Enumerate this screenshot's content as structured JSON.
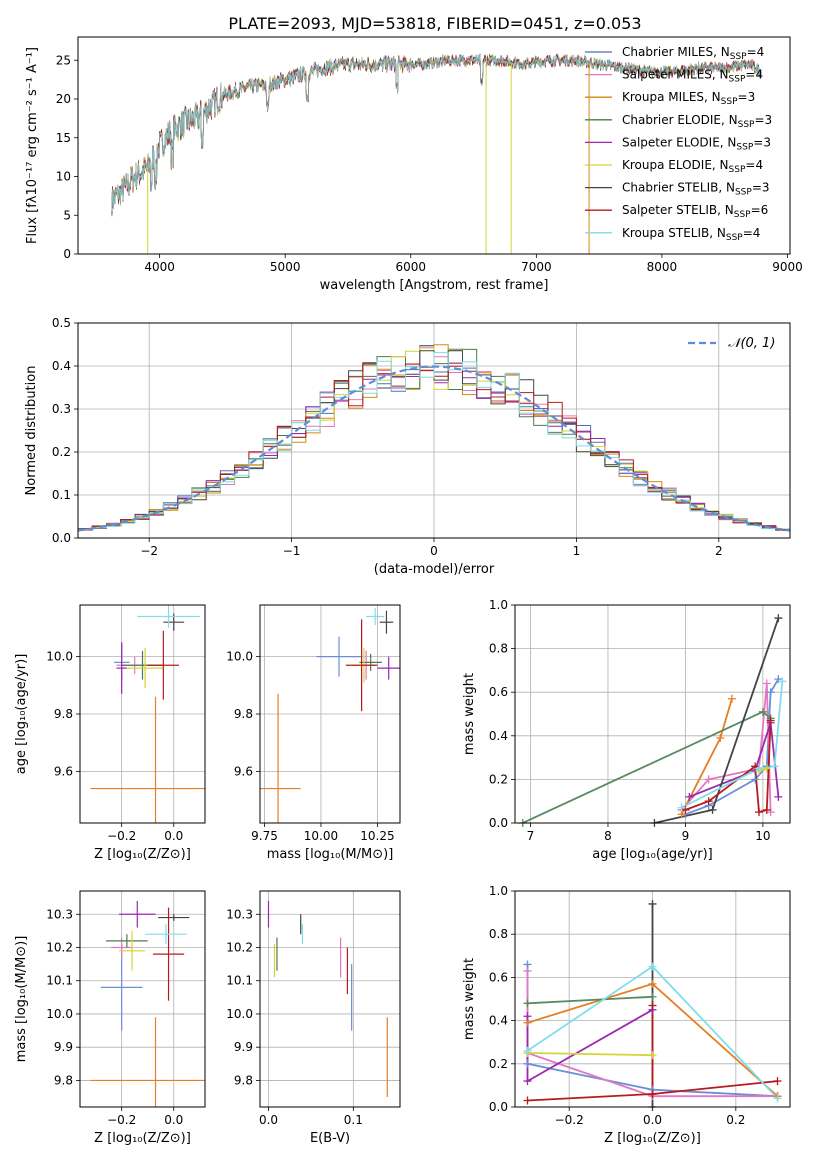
{
  "figure": {
    "title": "PLATE=2093, MJD=53818, FIBERID=0451, z=0.053"
  },
  "colors": {
    "chabrier_miles": "#4C72B0",
    "salpeter_miles": "#E377C2",
    "kroupa_miles": "#D62728",
    "chabrier_elodie": "#2E7D32",
    "salpeter_elodie": "#9C27B0",
    "kroupa_elodie": "#CDDC39",
    "chabrier_stelib": "#444444",
    "salpeter_stelib": "#B71C1C",
    "kroupa_stelib": "#80DEEA",
    "normal": "#5B8DD9",
    "orange": "#E67E22",
    "blue": "#6A8FD8"
  },
  "chart_data": [
    {
      "id": "spectrum",
      "type": "line",
      "xlabel": "wavelength [Angstrom, rest frame]",
      "ylabel": "Flux [fλ10⁻¹⁷ erg cm⁻² s⁻¹ A⁻¹]",
      "xlim": [
        3350,
        9020
      ],
      "ylim": [
        0,
        28
      ],
      "xticks": [
        4000,
        5000,
        6000,
        7000,
        8000,
        9000
      ],
      "yticks": [
        0,
        5,
        10,
        15,
        20,
        25
      ],
      "grid": false,
      "legend_position": "right",
      "continuum": {
        "x": [
          3620,
          3700,
          3800,
          3900,
          4000,
          4100,
          4200,
          4300,
          4400,
          4500,
          4700,
          4900,
          5100,
          5300,
          5500,
          5700,
          5900,
          6100,
          6300,
          6500,
          6700,
          6900,
          7100,
          7300,
          7500,
          7700,
          7900,
          8100,
          8300,
          8500,
          8700,
          8790
        ],
        "y": [
          7,
          8,
          10,
          11,
          14,
          16,
          17,
          17.5,
          19,
          20.5,
          21.5,
          22,
          23,
          24,
          24.5,
          24.5,
          24.5,
          24.5,
          25,
          25,
          25,
          24.5,
          25,
          25,
          24.5,
          24,
          23.5,
          23.5,
          24,
          24,
          24.5,
          23.5
        ]
      },
      "series": [
        {
          "name": "Chabrier MILES, N<sub>SSP</sub>=4",
          "label_main": "Chabrier MILES, N",
          "label_sub": "SSP",
          "label_end": "=4",
          "color": "#4C72B0"
        },
        {
          "name": "Salpeter MILES, N<sub>SSP</sub>=4",
          "label_main": "Salpeter MILES, N",
          "label_sub": "SSP",
          "label_end": "=4",
          "color": "#E377C2"
        },
        {
          "name": "Kroupa MILES, N<sub>SSP</sub>=3",
          "label_main": "Kroupa MILES, N",
          "label_sub": "SSP",
          "label_end": "=3",
          "color": "#D68910"
        },
        {
          "name": "Chabrier ELODIE, N<sub>SSP</sub>=3",
          "label_main": "Chabrier ELODIE, N",
          "label_sub": "SSP",
          "label_end": "=3",
          "color": "#4E7A4E"
        },
        {
          "name": "Salpeter ELODIE, N<sub>SSP</sub>=3",
          "label_main": "Salpeter ELODIE, N",
          "label_sub": "SSP",
          "label_end": "=3",
          "color": "#9C27B0"
        },
        {
          "name": "Kroupa ELODIE, N<sub>SSP</sub>=4",
          "label_main": "Kroupa ELODIE, N",
          "label_sub": "SSP",
          "label_end": "=4",
          "color": "#D4D435"
        },
        {
          "name": "Chabrier STELIB, N<sub>SSP</sub>=3",
          "label_main": "Chabrier STELIB, N",
          "label_sub": "SSP",
          "label_end": "=3",
          "color": "#444444"
        },
        {
          "name": "Salpeter STELIB, N<sub>SSP</sub>=6",
          "label_main": "Salpeter STELIB, N",
          "label_sub": "SSP",
          "label_end": "=6",
          "color": "#B71C1C"
        },
        {
          "name": "Kroupa STELIB, N<sub>SSP</sub>=4",
          "label_main": "Kroupa STELIB, N",
          "label_sub": "SSP",
          "label_end": "=4",
          "color": "#7FDBDB"
        }
      ]
    },
    {
      "id": "residuals",
      "type": "line",
      "xlabel": "(data-model)/error",
      "ylabel": "Normed distribution",
      "xlim": [
        -2.5,
        2.5
      ],
      "ylim": [
        0,
        0.5
      ],
      "xticks": [
        -2,
        -1,
        0,
        1,
        2
      ],
      "yticks": [
        0.0,
        0.1,
        0.2,
        0.3,
        0.4,
        0.5
      ],
      "grid": true,
      "legend_position": "top-right",
      "legend": "𝒩(0, 1)",
      "bins": 50
    },
    {
      "id": "age_vs_Z",
      "type": "scatter",
      "xlabel": "Z [log₁₀(Z/Z⊙)]",
      "ylabel": "age  [log₁₀(age/yr)]",
      "xlim": [
        -0.36,
        0.12
      ],
      "ylim": [
        9.42,
        10.18
      ],
      "xticks": [
        -0.2,
        0.0
      ],
      "yticks": [
        9.6,
        9.8,
        10.0
      ],
      "grid": true,
      "points": [
        {
          "x": -0.2,
          "xerr": 0.03,
          "y": 9.98,
          "yerr": 0.06,
          "color": "#6A8FD8"
        },
        {
          "x": -0.15,
          "xerr": 0.07,
          "y": 9.97,
          "yerr": 0.03,
          "color": "#E377C2"
        },
        {
          "x": -0.07,
          "xerr": 0.25,
          "y": 9.54,
          "yerr": 0.32,
          "color": "#E67E22"
        },
        {
          "x": -0.12,
          "xerr": 0.08,
          "y": 9.97,
          "yerr": 0.05,
          "color": "#4E7A4E"
        },
        {
          "x": -0.2,
          "xerr": 0.02,
          "y": 9.96,
          "yerr": 0.09,
          "color": "#9C27B0"
        },
        {
          "x": -0.11,
          "xerr": 0.07,
          "y": 9.96,
          "yerr": 0.07,
          "color": "#D4D435"
        },
        {
          "x": 0.0,
          "xerr": 0.04,
          "y": 10.12,
          "yerr": 0.03,
          "color": "#444444"
        },
        {
          "x": -0.04,
          "xerr": 0.06,
          "y": 9.97,
          "yerr": 0.12,
          "color": "#B71C1C"
        },
        {
          "x": -0.02,
          "xerr": 0.12,
          "y": 10.14,
          "yerr": 0.04,
          "color": "#80DEEA"
        }
      ]
    },
    {
      "id": "age_vs_mass",
      "type": "scatter",
      "xlabel": "mass [log₁₀(M/M⊙)]",
      "ylabel": "",
      "xlim": [
        9.73,
        10.35
      ],
      "ylim": [
        9.42,
        10.18
      ],
      "xticks": [
        9.75,
        10.0,
        10.25
      ],
      "yticks": [
        9.6,
        9.8,
        10.0
      ],
      "grid": true,
      "points": [
        {
          "x": 10.08,
          "xerr": 0.1,
          "y": 10.0,
          "yerr": 0.07,
          "color": "#6A8FD8"
        },
        {
          "x": 10.2,
          "xerr": 0.03,
          "y": 9.97,
          "yerr": 0.05,
          "color": "#E377C2"
        },
        {
          "x": 9.81,
          "xerr": 0.1,
          "y": 9.54,
          "yerr": 0.33,
          "color": "#E67E22"
        },
        {
          "x": 10.22,
          "xerr": 0.05,
          "y": 9.98,
          "yerr": 0.03,
          "color": "#4E7A4E"
        },
        {
          "x": 10.3,
          "xerr": 0.05,
          "y": 9.96,
          "yerr": 0.04,
          "color": "#9C27B0"
        },
        {
          "x": 10.19,
          "xerr": 0.05,
          "y": 9.97,
          "yerr": 0.06,
          "color": "#D4D435"
        },
        {
          "x": 10.29,
          "xerr": 0.03,
          "y": 10.12,
          "yerr": 0.04,
          "color": "#444444"
        },
        {
          "x": 10.18,
          "xerr": 0.07,
          "y": 9.97,
          "yerr": 0.16,
          "color": "#B71C1C"
        },
        {
          "x": 10.24,
          "xerr": 0.04,
          "y": 10.14,
          "yerr": 0.03,
          "color": "#80DEEA"
        }
      ]
    },
    {
      "id": "weight_vs_age",
      "type": "line",
      "xlabel": "age  [log₁₀(age/yr)]",
      "ylabel": "mass weight",
      "xlim": [
        6.8,
        10.35
      ],
      "ylim": [
        0,
        1
      ],
      "xticks": [
        7,
        8,
        9,
        10
      ],
      "yticks": [
        0.0,
        0.2,
        0.4,
        0.6,
        0.8,
        1.0
      ],
      "grid": true,
      "series": [
        {
          "color": "#6A8FD8",
          "x": [
            9.0,
            9.3,
            9.9,
            10.05,
            10.1,
            10.2
          ],
          "y": [
            0.04,
            0.08,
            0.2,
            0.26,
            0.6,
            0.66
          ]
        },
        {
          "color": "#E377C2",
          "x": [
            8.95,
            9.3,
            9.95,
            10.05,
            10.1
          ],
          "y": [
            0.06,
            0.2,
            0.25,
            0.64,
            0.05
          ]
        },
        {
          "color": "#E67E22",
          "x": [
            8.95,
            9.45,
            9.6
          ],
          "y": [
            0.04,
            0.39,
            0.57
          ]
        },
        {
          "color": "#5A8A62",
          "x": [
            6.9,
            10.0,
            10.1
          ],
          "y": [
            0.0,
            0.51,
            0.48
          ]
        },
        {
          "color": "#9C27B0",
          "x": [
            9.05,
            9.9,
            10.1,
            10.2
          ],
          "y": [
            0.12,
            0.24,
            0.46,
            0.12
          ]
        },
        {
          "color": "#D4D435",
          "x": [
            9.95,
            10.05
          ],
          "y": [
            0.24,
            0.25
          ]
        },
        {
          "color": "#444444",
          "x": [
            8.6,
            9.35,
            10.2
          ],
          "y": [
            0.0,
            0.06,
            0.94
          ]
        },
        {
          "color": "#B71C1C",
          "x": [
            9.0,
            9.3,
            9.9,
            9.95,
            10.05,
            10.1
          ],
          "y": [
            0.06,
            0.1,
            0.26,
            0.05,
            0.06,
            0.47
          ]
        },
        {
          "color": "#80DEEA",
          "x": [
            8.95,
            9.95,
            10.15,
            10.25
          ],
          "y": [
            0.07,
            0.25,
            0.26,
            0.65
          ]
        }
      ]
    },
    {
      "id": "mass_vs_Z",
      "type": "scatter",
      "xlabel": "Z [log₁₀(Z/Z⊙)]",
      "ylabel": "mass [log₁₀(M/M⊙)]",
      "xlim": [
        -0.36,
        0.12
      ],
      "ylim": [
        9.72,
        10.37
      ],
      "xticks": [
        -0.2,
        0.0
      ],
      "yticks": [
        9.8,
        9.9,
        10.0,
        10.1,
        10.2,
        10.3
      ],
      "grid": true,
      "points": [
        {
          "x": -0.2,
          "xerr": 0.08,
          "y": 10.08,
          "yerr": 0.13,
          "color": "#6A8FD8"
        },
        {
          "x": -0.2,
          "xerr": 0.04,
          "y": 10.2,
          "yerr": 0.03,
          "color": "#E377C2"
        },
        {
          "x": -0.07,
          "xerr": 0.25,
          "y": 9.8,
          "yerr": 0.19,
          "color": "#E67E22"
        },
        {
          "x": -0.18,
          "xerr": 0.08,
          "y": 10.22,
          "yerr": 0.02,
          "color": "#4E7A4E"
        },
        {
          "x": -0.14,
          "xerr": 0.07,
          "y": 10.3,
          "yerr": 0.04,
          "color": "#9C27B0"
        },
        {
          "x": -0.16,
          "xerr": 0.05,
          "y": 10.19,
          "yerr": 0.06,
          "color": "#D4D435"
        },
        {
          "x": 0.0,
          "xerr": 0.06,
          "y": 10.29,
          "yerr": 0.01,
          "color": "#444444"
        },
        {
          "x": -0.02,
          "xerr": 0.06,
          "y": 10.18,
          "yerr": 0.14,
          "color": "#B71C1C"
        },
        {
          "x": -0.03,
          "xerr": 0.08,
          "y": 10.24,
          "yerr": 0.03,
          "color": "#80DEEA"
        }
      ]
    },
    {
      "id": "mass_vs_ebv",
      "type": "scatter",
      "xlabel": "E(B-V)",
      "ylabel": "",
      "xlim": [
        -0.01,
        0.155
      ],
      "ylim": [
        9.72,
        10.37
      ],
      "xticks": [
        0.0,
        0.1
      ],
      "yticks": [
        9.8,
        9.9,
        10.0,
        10.1,
        10.2,
        10.3
      ],
      "grid": true,
      "points": [
        {
          "x": 0.098,
          "xerr": 0,
          "y": 10.05,
          "yerr": 0.1,
          "color": "#6A8FD8"
        },
        {
          "x": 0.085,
          "xerr": 0,
          "y": 10.17,
          "yerr": 0.06,
          "color": "#E377C2"
        },
        {
          "x": 0.14,
          "xerr": 0,
          "y": 9.87,
          "yerr": 0.12,
          "color": "#E67E22"
        },
        {
          "x": 0.01,
          "xerr": 0,
          "y": 10.18,
          "yerr": 0.05,
          "color": "#4E7A4E"
        },
        {
          "x": 0.0,
          "xerr": 0,
          "y": 10.3,
          "yerr": 0.04,
          "color": "#9C27B0"
        },
        {
          "x": 0.007,
          "xerr": 0,
          "y": 10.16,
          "yerr": 0.05,
          "color": "#D4D435"
        },
        {
          "x": 0.038,
          "xerr": 0,
          "y": 10.27,
          "yerr": 0.03,
          "color": "#444444"
        },
        {
          "x": 0.093,
          "xerr": 0,
          "y": 10.13,
          "yerr": 0.07,
          "color": "#B71C1C"
        },
        {
          "x": 0.04,
          "xerr": 0,
          "y": 10.24,
          "yerr": 0.03,
          "color": "#80DEEA"
        }
      ]
    },
    {
      "id": "weight_vs_Z",
      "type": "line",
      "xlabel": "Z [log₁₀(Z/Z⊙)]",
      "ylabel": "mass weight",
      "xlim": [
        -0.33,
        0.33
      ],
      "ylim": [
        0,
        1
      ],
      "xticks": [
        -0.2,
        0.0,
        0.2
      ],
      "yticks": [
        0.0,
        0.2,
        0.4,
        0.6,
        0.8,
        1.0
      ],
      "grid": true,
      "series": [
        {
          "color": "#6A8FD8",
          "x": [
            -0.3,
            -0.3,
            0.0,
            0.3
          ],
          "y": [
            0.66,
            0.2,
            0.08,
            0.05
          ]
        },
        {
          "color": "#E377C2",
          "x": [
            -0.3,
            -0.3,
            0.0,
            0.3
          ],
          "y": [
            0.63,
            0.25,
            0.05,
            0.05
          ]
        },
        {
          "color": "#E67E22",
          "x": [
            -0.3,
            0.0,
            0.3
          ],
          "y": [
            0.39,
            0.57,
            0.05
          ]
        },
        {
          "color": "#5A8A62",
          "x": [
            -0.3,
            0.0
          ],
          "y": [
            0.48,
            0.51
          ]
        },
        {
          "color": "#9C27B0",
          "x": [
            -0.3,
            -0.3,
            0.0
          ],
          "y": [
            0.42,
            0.12,
            0.45
          ]
        },
        {
          "color": "#D4D435",
          "x": [
            -0.3,
            0.0
          ],
          "y": [
            0.25,
            0.24
          ]
        },
        {
          "color": "#444444",
          "x": [
            0.0,
            0.0
          ],
          "y": [
            0.94,
            0.0
          ]
        },
        {
          "color": "#B71C1C",
          "x": [
            -0.3,
            0.0,
            0.0,
            0.0,
            0.3
          ],
          "y": [
            0.03,
            0.06,
            0.47,
            0.06,
            0.12
          ]
        },
        {
          "color": "#80DEEA",
          "x": [
            -0.3,
            0.0,
            0.3
          ],
          "y": [
            0.26,
            0.65,
            0.04
          ]
        }
      ]
    }
  ]
}
